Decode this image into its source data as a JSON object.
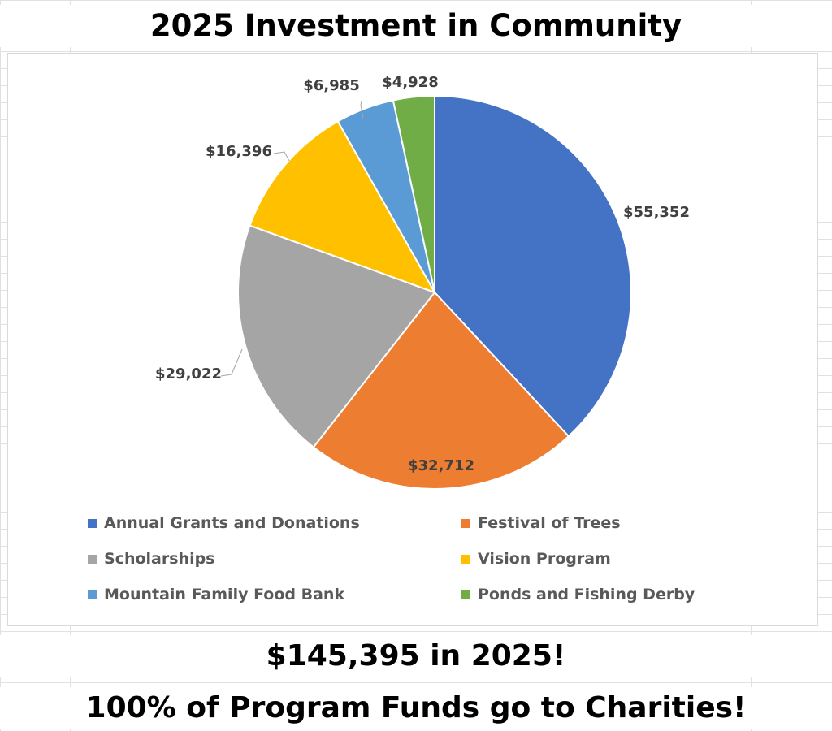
{
  "chart_data": {
    "type": "pie",
    "title": "2025 Investment in Community",
    "categories": [
      "Annual Grants and Donations",
      "Festival of Trees",
      "Scholarships",
      "Vision Program",
      "Mountain Family Food Bank",
      "Ponds and Fishing Derby"
    ],
    "values": [
      55352,
      32712,
      29022,
      16396,
      6985,
      4928
    ],
    "data_labels": [
      "$55,352",
      "$32,712",
      "$29,022",
      "$16,396",
      "$6,985",
      "$4,928"
    ],
    "colors": [
      "#4472C4",
      "#ED7D31",
      "#A5A5A5",
      "#FFC000",
      "#5B9BD5",
      "#70AD47"
    ],
    "legend_position": "bottom"
  },
  "footer": {
    "total": "$145,395 in 2025!",
    "note": "100% of Program Funds go to Charities!"
  }
}
